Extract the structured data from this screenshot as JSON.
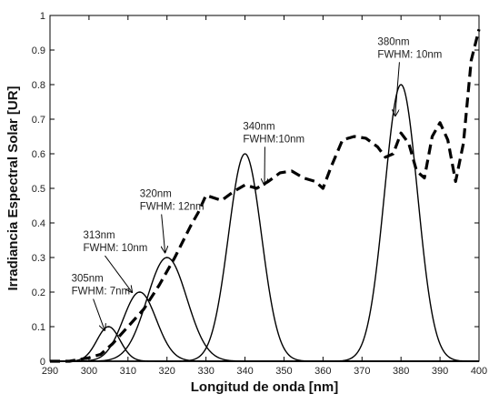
{
  "chart_data": {
    "type": "line",
    "title": "",
    "xlabel": "Longitud de onda [nm]",
    "ylabel": "Irradiancia Espectral Solar  [UR]",
    "xlim": [
      290,
      400
    ],
    "ylim": [
      0,
      1
    ],
    "xticks": [
      290,
      300,
      310,
      320,
      330,
      340,
      350,
      360,
      370,
      380,
      390,
      400
    ],
    "yticks": [
      0,
      0.1,
      0.2,
      0.3,
      0.4,
      0.5,
      0.6,
      0.7,
      0.8,
      0.9,
      1
    ],
    "ytick_labels": [
      "0",
      "0.1",
      "0.2",
      "0.3",
      "0.4",
      "0.5",
      "0.6",
      "0.7",
      "0.8",
      "0.9",
      "1"
    ],
    "grid": false,
    "legend": "none",
    "series": [
      {
        "style": "dashed",
        "color": "#000000",
        "x": [
          290,
          295,
          300,
          303,
          306,
          310,
          314,
          318,
          322,
          326,
          328,
          330,
          334,
          337,
          340,
          343,
          346,
          349,
          352,
          355,
          358,
          360,
          362,
          365,
          368,
          371,
          374,
          376,
          378,
          380,
          382,
          384,
          386,
          388,
          390,
          392,
          394,
          396,
          398,
          400
        ],
        "y": [
          0.0,
          0.0,
          0.01,
          0.02,
          0.05,
          0.1,
          0.15,
          0.22,
          0.3,
          0.39,
          0.43,
          0.48,
          0.465,
          0.49,
          0.51,
          0.5,
          0.52,
          0.545,
          0.55,
          0.53,
          0.52,
          0.5,
          0.56,
          0.64,
          0.65,
          0.645,
          0.62,
          0.59,
          0.6,
          0.66,
          0.63,
          0.55,
          0.53,
          0.65,
          0.69,
          0.64,
          0.52,
          0.63,
          0.87,
          0.96
        ]
      },
      {
        "peak_x": 305,
        "peak_y": 0.1,
        "fwhm": 7,
        "style": "solid",
        "color": "#000000"
      },
      {
        "peak_x": 313,
        "peak_y": 0.2,
        "fwhm": 10,
        "style": "solid",
        "color": "#000000"
      },
      {
        "peak_x": 320,
        "peak_y": 0.3,
        "fwhm": 12,
        "style": "solid",
        "color": "#000000"
      },
      {
        "peak_x": 340,
        "peak_y": 0.6,
        "fwhm": 10,
        "style": "solid",
        "color": "#000000"
      },
      {
        "peak_x": 380,
        "peak_y": 0.8,
        "fwhm": 10,
        "style": "solid",
        "color": "#000000"
      }
    ],
    "annotations": [
      {
        "lines": [
          "305nm",
          "FWHM: 7nm"
        ],
        "label_x": 295.5,
        "label_y": 0.23,
        "arrow_to": [
          304,
          0.09
        ]
      },
      {
        "lines": [
          "313nm",
          "FWHM: 10nm"
        ],
        "label_x": 298.5,
        "label_y": 0.355,
        "arrow_to": [
          311,
          0.2
        ]
      },
      {
        "lines": [
          "320nm",
          "FWHM: 12nm"
        ],
        "label_x": 313,
        "label_y": 0.475,
        "arrow_to": [
          319.5,
          0.315
        ]
      },
      {
        "lines": [
          "340nm",
          "FWHM:10nm"
        ],
        "label_x": 339.5,
        "label_y": 0.67,
        "arrow_to": [
          345,
          0.51
        ]
      },
      {
        "lines": [
          "380nm",
          "FWHM: 10nm"
        ],
        "label_x": 374,
        "label_y": 0.915,
        "arrow_to": [
          378.5,
          0.71
        ]
      }
    ]
  }
}
